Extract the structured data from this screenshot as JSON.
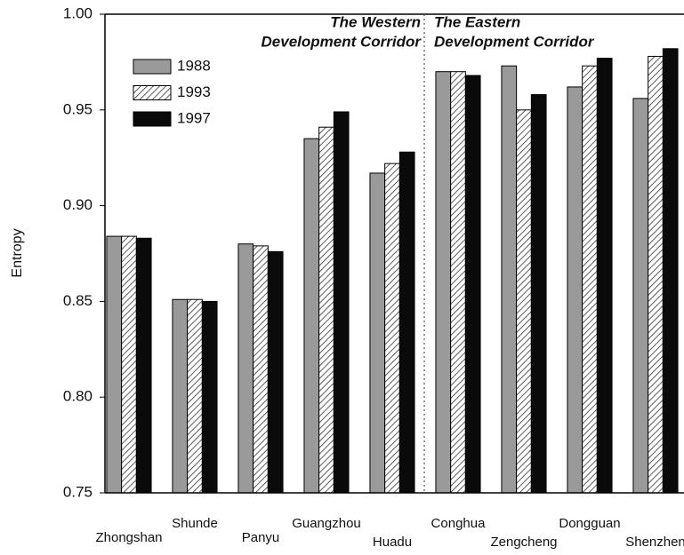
{
  "chart_data": {
    "type": "bar",
    "y_label": "Entropy",
    "categories": [
      "Zhongshan",
      "Shunde",
      "Panyu",
      "Guangzhou",
      "Huadu",
      "Conghua",
      "Zengcheng",
      "Dongguan",
      "Shenzhen"
    ],
    "series": [
      {
        "name": "1988",
        "color": "#9a9a9a",
        "values": [
          0.884,
          0.851,
          0.88,
          0.935,
          0.917,
          0.97,
          0.973,
          0.962,
          0.956
        ]
      },
      {
        "name": "1993",
        "color": "#ffffff",
        "pattern": "hatch",
        "values": [
          0.884,
          0.851,
          0.879,
          0.941,
          0.922,
          0.97,
          0.95,
          0.973,
          0.978
        ]
      },
      {
        "name": "1997",
        "color": "#0a0a0a",
        "values": [
          0.883,
          0.85,
          0.876,
          0.949,
          0.928,
          0.968,
          0.958,
          0.977,
          0.982
        ]
      }
    ],
    "ylim": [
      0.75,
      1.0
    ],
    "yticks": [
      0.75,
      {
        "value": 0.8,
        "label": "0.80"
      },
      0.85,
      {
        "value": 0.9,
        "label": "0.90"
      },
      0.95,
      {
        "value": 1.0,
        "label": "1.00"
      }
    ],
    "annotations": [
      {
        "lines": [
          "The Western",
          "Development Corridor"
        ]
      },
      {
        "lines": [
          "The Eastern",
          "Development Corridor"
        ]
      }
    ],
    "legend": "upper left",
    "grid": false
  }
}
